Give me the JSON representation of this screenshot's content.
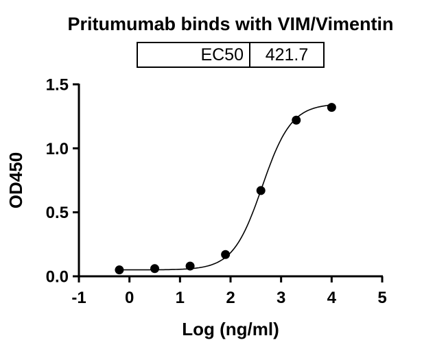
{
  "title": "Pritumumab binds with VIM/Vimentin",
  "ec50_table": {
    "label": "EC50",
    "value": "421.7"
  },
  "chart_data": {
    "type": "scatter",
    "title": "Pritumumab binds with VIM/Vimentin",
    "xlabel": "Log (ng/ml)",
    "ylabel": "OD450",
    "xlim": [
      -1,
      5
    ],
    "ylim": [
      0,
      1.5
    ],
    "x_ticks": [
      -1,
      0,
      1,
      2,
      3,
      4,
      5
    ],
    "y_ticks": [
      0.0,
      0.5,
      1.0,
      1.5
    ],
    "grid": false,
    "legend": false,
    "marker_color": "#000000",
    "line_color": "#000000",
    "points": [
      {
        "x": -0.2,
        "y": 0.05
      },
      {
        "x": 0.5,
        "y": 0.06
      },
      {
        "x": 1.2,
        "y": 0.08
      },
      {
        "x": 1.9,
        "y": 0.17
      },
      {
        "x": 2.6,
        "y": 0.67
      },
      {
        "x": 3.3,
        "y": 1.22
      },
      {
        "x": 4.0,
        "y": 1.32
      }
    ],
    "curve_fit": {
      "model": "4PL sigmoid",
      "ec50": 421.7,
      "log_ec50": 2.625,
      "bottom": 0.05,
      "top": 1.35,
      "hill_slope": 1.5,
      "x_start": -0.2,
      "x_end": 4.0
    }
  }
}
